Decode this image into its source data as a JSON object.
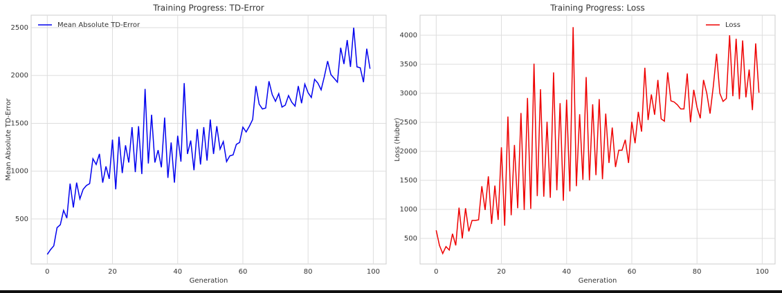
{
  "chart_data": [
    {
      "type": "line",
      "title": "Training Progress: TD-Error",
      "x_label": "Generation",
      "y_label": "Mean Absolute TD-Error",
      "x": [
        0,
        1,
        2,
        3,
        4,
        5,
        6,
        7,
        8,
        9,
        10,
        11,
        12,
        13,
        14,
        15,
        16,
        17,
        18,
        19,
        20,
        21,
        22,
        23,
        24,
        25,
        26,
        27,
        28,
        29,
        30,
        31,
        32,
        33,
        34,
        35,
        36,
        37,
        38,
        39,
        40,
        41,
        42,
        43,
        44,
        45,
        46,
        47,
        48,
        49,
        50,
        51,
        52,
        53,
        54,
        55,
        56,
        57,
        58,
        59,
        60,
        61,
        62,
        63,
        64,
        65,
        66,
        67,
        68,
        69,
        70,
        71,
        72,
        73,
        74,
        75,
        76,
        77,
        78,
        79,
        80,
        81,
        82,
        83,
        84,
        85,
        86,
        87,
        88,
        89,
        90,
        91,
        92,
        93,
        94,
        95,
        96,
        97,
        98,
        99
      ],
      "series": [
        {
          "name": "Mean Absolute TD-Error",
          "color": "#0000ee",
          "values": [
            130,
            180,
            220,
            410,
            440,
            590,
            510,
            870,
            620,
            880,
            710,
            810,
            850,
            870,
            1130,
            1070,
            1180,
            880,
            1050,
            920,
            1330,
            810,
            1360,
            980,
            1270,
            1090,
            1460,
            990,
            1470,
            970,
            1860,
            1080,
            1590,
            1090,
            1220,
            1040,
            1560,
            930,
            1300,
            880,
            1370,
            1100,
            1920,
            1180,
            1320,
            1010,
            1440,
            1070,
            1460,
            1110,
            1540,
            1180,
            1470,
            1230,
            1310,
            1100,
            1160,
            1170,
            1280,
            1300,
            1460,
            1410,
            1470,
            1540,
            1890,
            1700,
            1650,
            1660,
            1940,
            1800,
            1730,
            1810,
            1670,
            1690,
            1790,
            1720,
            1680,
            1890,
            1710,
            1910,
            1820,
            1770,
            1960,
            1920,
            1850,
            1990,
            2150,
            2010,
            1970,
            1930,
            2290,
            2120,
            2370,
            2090,
            2500,
            2090,
            2080,
            1930,
            2280,
            2070
          ]
        }
      ],
      "xlim": [
        -4.95,
        103.95
      ],
      "ylim": [
        30,
        2630
      ],
      "xticks": [
        0,
        20,
        40,
        60,
        80,
        100
      ],
      "yticks": [
        500,
        1000,
        1500,
        2000,
        2500
      ],
      "grid": true,
      "legend": "upper left"
    },
    {
      "type": "line",
      "title": "Training Progress: Loss",
      "x_label": "Generation",
      "y_label": "Loss (Huber)",
      "x": [
        0,
        1,
        2,
        3,
        4,
        5,
        6,
        7,
        8,
        9,
        10,
        11,
        12,
        13,
        14,
        15,
        16,
        17,
        18,
        19,
        20,
        21,
        22,
        23,
        24,
        25,
        26,
        27,
        28,
        29,
        30,
        31,
        32,
        33,
        34,
        35,
        36,
        37,
        38,
        39,
        40,
        41,
        42,
        43,
        44,
        45,
        46,
        47,
        48,
        49,
        50,
        51,
        52,
        53,
        54,
        55,
        56,
        57,
        58,
        59,
        60,
        61,
        62,
        63,
        64,
        65,
        66,
        67,
        68,
        69,
        70,
        71,
        72,
        73,
        74,
        75,
        76,
        77,
        78,
        79,
        80,
        81,
        82,
        83,
        84,
        85,
        86,
        87,
        88,
        89,
        90,
        91,
        92,
        93,
        94,
        95,
        96,
        97,
        98,
        99
      ],
      "series": [
        {
          "name": "Loss",
          "color": "#ee0000",
          "values": [
            640,
            380,
            240,
            360,
            300,
            580,
            380,
            1030,
            500,
            1020,
            620,
            810,
            810,
            820,
            1400,
            990,
            1570,
            750,
            1410,
            820,
            2070,
            720,
            2600,
            900,
            2110,
            1020,
            2660,
            990,
            2920,
            1010,
            3510,
            1230,
            3070,
            1220,
            2510,
            1200,
            3360,
            1330,
            2830,
            1150,
            2890,
            1310,
            4140,
            1400,
            2640,
            1510,
            3280,
            1500,
            2810,
            1590,
            2900,
            1520,
            2650,
            1800,
            2410,
            1730,
            2020,
            2020,
            2200,
            1800,
            2510,
            2140,
            2680,
            2340,
            3440,
            2540,
            2980,
            2630,
            3230,
            2560,
            2520,
            3360,
            2870,
            2850,
            2800,
            2730,
            2730,
            3340,
            2500,
            3060,
            2760,
            2570,
            3230,
            3000,
            2650,
            3120,
            3680,
            3000,
            2860,
            2910,
            4000,
            2950,
            3940,
            2900,
            3910,
            2930,
            3410,
            2710,
            3860,
            3010
          ]
        }
      ],
      "xlim": [
        -4.95,
        103.95
      ],
      "ylim": [
        60,
        4345
      ],
      "xticks": [
        0,
        20,
        40,
        60,
        80,
        100
      ],
      "yticks": [
        500,
        1000,
        1500,
        2000,
        2500,
        3000,
        3500,
        4000
      ],
      "grid": true,
      "legend": "upper right"
    }
  ]
}
